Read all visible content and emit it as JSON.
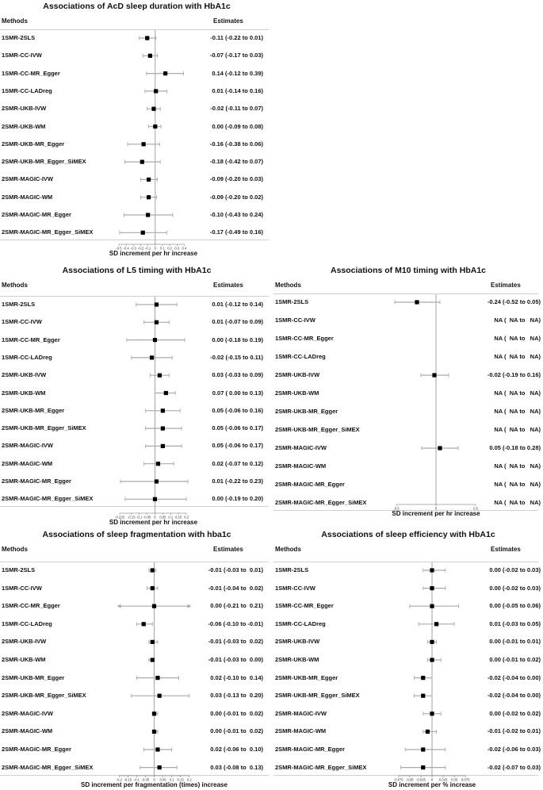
{
  "chart_data": [
    {
      "type": "forest",
      "title": "Associations of AcD sleep duration with HbA1c",
      "col_methods": "Methods",
      "col_estimates": "Estimates",
      "xlabel": "SD increment per hr increase",
      "xlim": [
        -0.5,
        0.45
      ],
      "ticks": [
        -0.5,
        -0.4,
        -0.3,
        -0.2,
        -0.1,
        0,
        0.1,
        0.2,
        0.3,
        0.4
      ],
      "tick_labels": [
        "-0.5",
        "-0.4",
        "-0.3",
        "-0.2",
        "-0.1",
        "0",
        "0.1",
        "0.2",
        "0.3",
        "0.4"
      ],
      "rows": [
        {
          "label": "1SMR-2SLS",
          "est": -0.11,
          "lo": -0.22,
          "hi": 0.01,
          "text": "-0.11 (-0.22 to 0.01)"
        },
        {
          "label": "1SMR-CC-IVW",
          "est": -0.07,
          "lo": -0.17,
          "hi": 0.03,
          "text": "-0.07 (-0.17 to 0.03)"
        },
        {
          "label": "1SMR-CC-MR_Egger",
          "est": 0.14,
          "lo": -0.12,
          "hi": 0.39,
          "text": "0.14 (-0.12 to 0.39)"
        },
        {
          "label": "1SMR-CC-LADreg",
          "est": 0.01,
          "lo": -0.14,
          "hi": 0.16,
          "text": "0.01 (-0.14 to 0.16)"
        },
        {
          "label": "2SMR-UKB-IVW",
          "est": -0.02,
          "lo": -0.11,
          "hi": 0.07,
          "text": "-0.02 (-0.11 to 0.07)"
        },
        {
          "label": "2SMR-UKB-WM",
          "est": 0.0,
          "lo": -0.09,
          "hi": 0.08,
          "text": "0.00 (-0.09 to 0.08)"
        },
        {
          "label": "2SMR-UKB-MR_Egger",
          "est": -0.16,
          "lo": -0.38,
          "hi": 0.06,
          "text": "-0.16 (-0.38 to 0.06)"
        },
        {
          "label": "2SMR-UKB-MR_Egger_SiMEX",
          "est": -0.18,
          "lo": -0.42,
          "hi": 0.07,
          "text": "-0.18 (-0.42 to 0.07)"
        },
        {
          "label": "2SMR-MAGIC-IVW",
          "est": -0.09,
          "lo": -0.2,
          "hi": 0.03,
          "text": "-0.09 (-0.20 to 0.03)"
        },
        {
          "label": "2SMR-MAGIC-WM",
          "est": -0.09,
          "lo": -0.2,
          "hi": 0.02,
          "text": "-0.09 (-0.20 to 0.02)"
        },
        {
          "label": "2SMR-MAGIC-MR_Egger",
          "est": -0.1,
          "lo": -0.43,
          "hi": 0.24,
          "text": "-0.10 (-0.43 to 0.24)"
        },
        {
          "label": "2SMR-MAGIC-MR_Egger_SiMEX",
          "est": -0.17,
          "lo": -0.49,
          "hi": 0.16,
          "text": "-0.17 (-0.49 to 0.16)"
        }
      ]
    },
    {
      "type": "forest",
      "title": "Associations of L5 timing with HbA1c",
      "col_methods": "Methods",
      "col_estimates": "Estimates",
      "xlabel": "SD increment per hr increase",
      "xlim": [
        -0.23,
        0.21
      ],
      "ticks": [
        -0.225,
        -0.15,
        -0.1,
        -0.05,
        0,
        0.05,
        0.1,
        0.15,
        0.2
      ],
      "tick_labels": [
        "-0.225",
        "-0.15",
        "-0.1",
        "-0.05",
        "0",
        "0.05",
        "0.1",
        "0.15",
        "0.2"
      ],
      "rows": [
        {
          "label": "1SMR-2SLS",
          "est": 0.01,
          "lo": -0.12,
          "hi": 0.14,
          "text": "0.01 (-0.12 to 0.14)"
        },
        {
          "label": "1SMR-CC-IVW",
          "est": 0.01,
          "lo": -0.07,
          "hi": 0.09,
          "text": "0.01 (-0.07 to 0.09)"
        },
        {
          "label": "1SMR-CC-MR_Egger",
          "est": 0.0,
          "lo": -0.18,
          "hi": 0.19,
          "text": "0.00 (-0.18 to 0.19)"
        },
        {
          "label": "1SMR-CC-LADreg",
          "est": -0.02,
          "lo": -0.15,
          "hi": 0.11,
          "text": "-0.02 (-0.15 to 0.11)"
        },
        {
          "label": "2SMR-UKB-IVW",
          "est": 0.03,
          "lo": -0.03,
          "hi": 0.09,
          "text": "0.03 (-0.03 to 0.09)"
        },
        {
          "label": "2SMR-UKB-WM",
          "est": 0.07,
          "lo": 0.0,
          "hi": 0.13,
          "text": "0.07 ( 0.00 to 0.13)"
        },
        {
          "label": "2SMR-UKB-MR_Egger",
          "est": 0.05,
          "lo": -0.06,
          "hi": 0.16,
          "text": "0.05 (-0.06 to 0.16)"
        },
        {
          "label": "2SMR-UKB-MR_Egger_SiMEX",
          "est": 0.05,
          "lo": -0.06,
          "hi": 0.17,
          "text": "0.05 (-0.06 to 0.17)"
        },
        {
          "label": "2SMR-MAGIC-IVW",
          "est": 0.05,
          "lo": -0.06,
          "hi": 0.17,
          "text": "0.05 (-0.06 to 0.17)"
        },
        {
          "label": "2SMR-MAGIC-WM",
          "est": 0.02,
          "lo": -0.07,
          "hi": 0.12,
          "text": "0.02 (-0.07 to 0.12)"
        },
        {
          "label": "2SMR-MAGIC-MR_Egger",
          "est": 0.01,
          "lo": -0.22,
          "hi": 0.23,
          "text": "0.01 (-0.22 to 0.23)"
        },
        {
          "label": "2SMR-MAGIC-MR_Egger_SiMEX",
          "est": 0.0,
          "lo": -0.19,
          "hi": 0.2,
          "text": "0.00 (-0.19 to 0.20)"
        }
      ]
    },
    {
      "type": "forest",
      "title": "Associations of M10 timing with HbA1c",
      "col_methods": "Methods",
      "col_estimates": "Estimates",
      "xlabel": "SD increment per hr increase",
      "xlim": [
        -0.6,
        0.6
      ],
      "ticks": [
        -0.5,
        0,
        0.5
      ],
      "tick_labels": [
        "-0.5",
        "0",
        "0.5"
      ],
      "rows": [
        {
          "label": "1SMR-2SLS",
          "est": -0.24,
          "lo": -0.52,
          "hi": 0.05,
          "text": "-0.24 (-0.52 to 0.05)"
        },
        {
          "label": "1SMR-CC-IVW",
          "est": null,
          "lo": null,
          "hi": null,
          "text": "NA (  NA to   NA)"
        },
        {
          "label": "1SMR-CC-MR_Egger",
          "est": null,
          "lo": null,
          "hi": null,
          "text": "NA (  NA to   NA)"
        },
        {
          "label": "1SMR-CC-LADreg",
          "est": null,
          "lo": null,
          "hi": null,
          "text": "NA (  NA to   NA)"
        },
        {
          "label": "2SMR-UKB-IVW",
          "est": -0.02,
          "lo": -0.19,
          "hi": 0.16,
          "text": "-0.02 (-0.19 to 0.16)"
        },
        {
          "label": "2SMR-UKB-WM",
          "est": null,
          "lo": null,
          "hi": null,
          "text": "NA (  NA to   NA)"
        },
        {
          "label": "2SMR-UKB-MR_Egger",
          "est": null,
          "lo": null,
          "hi": null,
          "text": "NA (  NA to   NA)"
        },
        {
          "label": "2SMR-UKB-MR_Egger_SiMEX",
          "est": null,
          "lo": null,
          "hi": null,
          "text": "NA (  NA to   NA)"
        },
        {
          "label": "2SMR-MAGIC-IVW",
          "est": 0.05,
          "lo": -0.18,
          "hi": 0.28,
          "text": "0.05 (-0.18 to 0.28)"
        },
        {
          "label": "2SMR-MAGIC-WM",
          "est": null,
          "lo": null,
          "hi": null,
          "text": "NA (  NA to   NA)"
        },
        {
          "label": "2SMR-MAGIC-MR_Egger",
          "est": null,
          "lo": null,
          "hi": null,
          "text": "NA (  NA to   NA)"
        },
        {
          "label": "2SMR-MAGIC-MR_Egger_SiMEX",
          "est": null,
          "lo": null,
          "hi": null,
          "text": "NA (  NA to   NA)"
        }
      ]
    },
    {
      "type": "forest",
      "title": "Associations of sleep fragmentation with hba1c",
      "col_methods": "Methods",
      "col_estimates": "Estimates",
      "xlabel": "SD increment per fragmentation (times) increase",
      "xlim": [
        -0.21,
        0.21
      ],
      "arrows": {
        "row": 2,
        "left": true,
        "right": true
      },
      "ticks": [
        -0.2,
        -0.15,
        -0.1,
        -0.05,
        0,
        0.05,
        0.1,
        0.15,
        0.2
      ],
      "tick_labels": [
        "-0.2",
        "-0.15",
        "-0.1",
        "-0.05",
        "0",
        "0.05",
        "0.1",
        "0.15",
        "0.2"
      ],
      "rows": [
        {
          "label": "1SMR-2SLS",
          "est": -0.01,
          "lo": -0.03,
          "hi": 0.01,
          "text": "-0.01 (-0.03 to  0.01)"
        },
        {
          "label": "1SMR-CC-IVW",
          "est": -0.01,
          "lo": -0.04,
          "hi": 0.02,
          "text": "-0.01 (-0.04 to  0.02)"
        },
        {
          "label": "1SMR-CC-MR_Egger",
          "est": 0.0,
          "lo": -0.21,
          "hi": 0.21,
          "text": "0.00 (-0.21 to  0.21)"
        },
        {
          "label": "1SMR-CC-LADreg",
          "est": -0.06,
          "lo": -0.1,
          "hi": -0.01,
          "text": "-0.06 (-0.10 to -0.01)"
        },
        {
          "label": "2SMR-UKB-IVW",
          "est": -0.01,
          "lo": -0.03,
          "hi": 0.02,
          "text": "-0.01 (-0.03 to  0.02)"
        },
        {
          "label": "2SMR-UKB-WM",
          "est": -0.01,
          "lo": -0.03,
          "hi": 0.0,
          "text": "-0.01 (-0.03 to  0.00)"
        },
        {
          "label": "2SMR-UKB-MR_Egger",
          "est": 0.02,
          "lo": -0.1,
          "hi": 0.14,
          "text": "0.02 (-0.10 to  0.14)"
        },
        {
          "label": "2SMR-UKB-MR_Egger_SiMEX",
          "est": 0.03,
          "lo": -0.13,
          "hi": 0.2,
          "text": "0.03 (-0.13 to  0.20)"
        },
        {
          "label": "2SMR-MAGIC-IVW",
          "est": 0.0,
          "lo": -0.01,
          "hi": 0.02,
          "text": "0.00 (-0.01 to  0.02)"
        },
        {
          "label": "2SMR-MAGIC-WM",
          "est": 0.0,
          "lo": -0.01,
          "hi": 0.02,
          "text": "0.00 (-0.01 to  0.02)"
        },
        {
          "label": "2SMR-MAGIC-MR_Egger",
          "est": 0.02,
          "lo": -0.06,
          "hi": 0.1,
          "text": "0.02 (-0.06 to  0.10)"
        },
        {
          "label": "2SMR-MAGIC-MR_Egger_SiMEX",
          "est": 0.03,
          "lo": -0.08,
          "hi": 0.13,
          "text": "0.03 (-0.08 to  0.13)"
        }
      ]
    },
    {
      "type": "forest",
      "title": "Associations of sleep efficiency with HbA1c",
      "col_methods": "Methods",
      "col_estimates": "Estimates",
      "xlabel": "SD increment per % increase",
      "xlim": [
        -0.08,
        0.08
      ],
      "ticks": [
        -0.075,
        -0.05,
        -0.025,
        0,
        0.025,
        0.05,
        0.075
      ],
      "tick_labels": [
        "-0.075",
        "-0.05",
        "-0.025",
        "0",
        "0.025",
        "0.05",
        "0.075"
      ],
      "rows": [
        {
          "label": "1SMR-2SLS",
          "est": 0.0,
          "lo": -0.02,
          "hi": 0.03,
          "text": "0.00 (-0.02 to 0.03)"
        },
        {
          "label": "1SMR-CC-IVW",
          "est": 0.0,
          "lo": -0.02,
          "hi": 0.03,
          "text": "0.00 (-0.02 to 0.03)"
        },
        {
          "label": "1SMR-CC-MR_Egger",
          "est": 0.0,
          "lo": -0.05,
          "hi": 0.06,
          "text": "0.00 (-0.05 to 0.06)"
        },
        {
          "label": "1SMR-CC-LADreg",
          "est": 0.01,
          "lo": -0.03,
          "hi": 0.05,
          "text": "0.01 (-0.03 to 0.05)"
        },
        {
          "label": "2SMR-UKB-IVW",
          "est": 0.0,
          "lo": -0.01,
          "hi": 0.01,
          "text": "0.00 (-0.01 to 0.01)"
        },
        {
          "label": "2SMR-UKB-WM",
          "est": 0.0,
          "lo": -0.01,
          "hi": 0.02,
          "text": "0.00 (-0.01 to 0.02)"
        },
        {
          "label": "2SMR-UKB-MR_Egger",
          "est": -0.02,
          "lo": -0.04,
          "hi": 0.0,
          "text": "-0.02 (-0.04 to 0.00)"
        },
        {
          "label": "2SMR-UKB-MR_Egger_SiMEX",
          "est": -0.02,
          "lo": -0.04,
          "hi": 0.0,
          "text": "-0.02 (-0.04 to 0.00)"
        },
        {
          "label": "2SMR-MAGIC-IVW",
          "est": 0.0,
          "lo": -0.02,
          "hi": 0.02,
          "text": "0.00 (-0.02 to 0.02)"
        },
        {
          "label": "2SMR-MAGIC-WM",
          "est": -0.01,
          "lo": -0.02,
          "hi": 0.01,
          "text": "-0.01 (-0.02 to 0.01)"
        },
        {
          "label": "2SMR-MAGIC-MR_Egger",
          "est": -0.02,
          "lo": -0.06,
          "hi": 0.03,
          "text": "-0.02 (-0.06 to 0.03)"
        },
        {
          "label": "2SMR-MAGIC-MR_Egger_SiMEX",
          "est": -0.02,
          "lo": -0.07,
          "hi": 0.03,
          "text": "-0.02 (-0.07 to 0.03)"
        }
      ]
    }
  ],
  "colors": {
    "ci": "#aaaaaa",
    "point": "#000000",
    "rule": "#cfcfcf",
    "zero": "#999999"
  }
}
